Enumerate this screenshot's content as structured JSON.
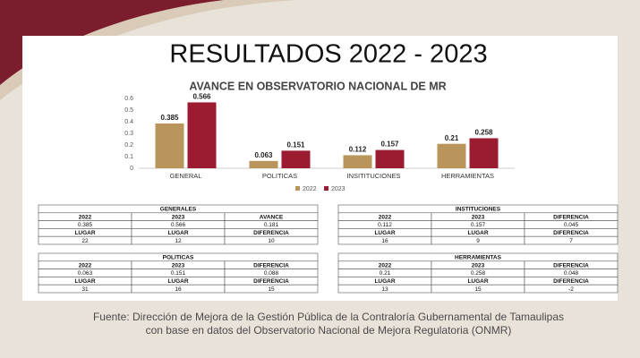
{
  "header": {
    "title": "RESULTADOS 2022 - 2023"
  },
  "chart_data": {
    "type": "bar",
    "title": "AVANCE EN OBSERVATORIO NACIONAL DE MR",
    "categories": [
      "GENERAL",
      "POLITICAS",
      "INSITITUCIONES",
      "HERRAMIENTAS"
    ],
    "series": [
      {
        "name": "2022",
        "color": "#b9955c",
        "values": [
          0.385,
          0.063,
          0.112,
          0.21
        ]
      },
      {
        "name": "2023",
        "color": "#9b1b30",
        "values": [
          0.566,
          0.151,
          0.157,
          0.258
        ]
      }
    ],
    "ylim": [
      0,
      0.6
    ],
    "yticks": [
      0,
      0.1,
      0.2,
      0.3,
      0.4,
      0.5,
      0.6
    ],
    "grid": false,
    "legend": "bottom"
  },
  "tables": [
    {
      "title": "GENERALES",
      "rows": [
        [
          "2022",
          "2023",
          "AVANCE"
        ],
        [
          "0.385",
          "0.566",
          "0.181"
        ],
        [
          "LUGAR",
          "LUGAR",
          "DIFERENCIA"
        ],
        [
          "22",
          "12",
          "10"
        ]
      ]
    },
    {
      "title": "INSTITUCIONES",
      "rows": [
        [
          "2022",
          "2023",
          "DIFERENCIA"
        ],
        [
          "0.112",
          "0.157",
          "0.045"
        ],
        [
          "LUGAR",
          "LUGAR",
          "DIFERENCIA"
        ],
        [
          "16",
          "9",
          "7"
        ]
      ]
    },
    {
      "title": "POLITICAS",
      "rows": [
        [
          "2022",
          "2023",
          "DIFERENCIA"
        ],
        [
          "0.063",
          "0.151",
          "0.088"
        ],
        [
          "LUGAR",
          "LUGAR",
          "DIFERENCIA"
        ],
        [
          "31",
          "16",
          "15"
        ]
      ]
    },
    {
      "title": "HERRAMIENTAS",
      "rows": [
        [
          "2022",
          "2023",
          "DIFERENCIA"
        ],
        [
          "0.21",
          "0.258",
          "0.048"
        ],
        [
          "LUGAR",
          "LUGAR",
          "DIFERENCIA"
        ],
        [
          "13",
          "15",
          "-2"
        ]
      ]
    }
  ],
  "footer": {
    "lines": [
      "Fuente: Dirección de Mejora de la Gestión Pública de la Contraloría Gubernamental de Tamaulipas",
      "con base en datos del Observatorio Nacional de Mejora Regulatoria (ONMR)"
    ]
  }
}
